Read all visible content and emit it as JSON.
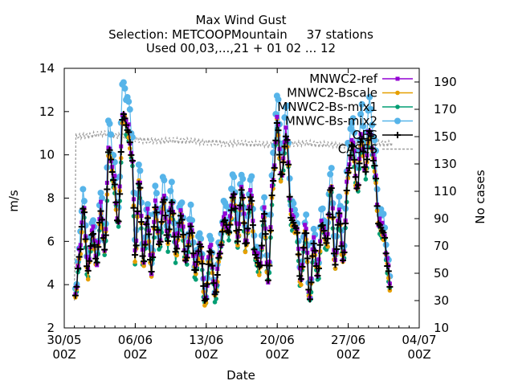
{
  "chart_data": {
    "type": "line",
    "title_lines": [
      "Max Wind Gust",
      "Selection: METCOOPMountain     37 stations",
      "Used 00,03,...,21 + 01 02 ... 12"
    ],
    "xlabel": "Date",
    "ylabel": "m/s",
    "y2label": "No cases",
    "x_ticks": [
      {
        "day": 0,
        "line1": "30/05",
        "line2": "00Z"
      },
      {
        "day": 7,
        "line1": "06/06",
        "line2": "00Z"
      },
      {
        "day": 14,
        "line1": "13/06",
        "line2": "00Z"
      },
      {
        "day": 21,
        "line1": "20/06",
        "line2": "00Z"
      },
      {
        "day": 28,
        "line1": "27/06",
        "line2": "00Z"
      },
      {
        "day": 35,
        "line1": "04/07",
        "line2": "00Z"
      }
    ],
    "xlim_days": [
      0,
      35
    ],
    "ylim": [
      2,
      14
    ],
    "y_ticks": [
      2,
      4,
      6,
      8,
      10,
      12,
      14
    ],
    "y2lim": [
      10,
      200
    ],
    "y2_ticks": [
      10,
      30,
      50,
      70,
      90,
      110,
      130,
      150,
      170,
      190
    ],
    "legend_position": "top-right",
    "grid": false,
    "obs_keypoints": [
      [
        1.1,
        3.7
      ],
      [
        1.5,
        5.5
      ],
      [
        1.9,
        7.8
      ],
      [
        2.3,
        4.8
      ],
      [
        2.8,
        6.6
      ],
      [
        3.2,
        5.2
      ],
      [
        3.6,
        7.6
      ],
      [
        4.0,
        5.8
      ],
      [
        4.4,
        10.5
      ],
      [
        4.9,
        9.0
      ],
      [
        5.3,
        7.0
      ],
      [
        5.8,
        12.1
      ],
      [
        6.3,
        11.3
      ],
      [
        6.7,
        10.0
      ],
      [
        7.0,
        5.5
      ],
      [
        7.4,
        9.0
      ],
      [
        7.8,
        5.2
      ],
      [
        8.2,
        7.3
      ],
      [
        8.6,
        4.8
      ],
      [
        9.0,
        7.8
      ],
      [
        9.4,
        6.0
      ],
      [
        9.8,
        8.2
      ],
      [
        10.2,
        6.2
      ],
      [
        10.6,
        8.0
      ],
      [
        11.0,
        5.7
      ],
      [
        11.5,
        7.4
      ],
      [
        12.0,
        5.3
      ],
      [
        12.5,
        6.9
      ],
      [
        12.9,
        4.8
      ],
      [
        13.4,
        6.1
      ],
      [
        13.9,
        3.4
      ],
      [
        14.4,
        5.8
      ],
      [
        14.9,
        3.7
      ],
      [
        15.3,
        5.6
      ],
      [
        15.8,
        7.2
      ],
      [
        16.2,
        6.6
      ],
      [
        16.7,
        8.4
      ],
      [
        17.1,
        6.2
      ],
      [
        17.5,
        8.6
      ],
      [
        17.9,
        6.0
      ],
      [
        18.4,
        8.3
      ],
      [
        18.8,
        5.6
      ],
      [
        19.3,
        5.0
      ],
      [
        19.7,
        7.5
      ],
      [
        20.1,
        4.4
      ],
      [
        20.6,
        9.0
      ],
      [
        21.0,
        11.7
      ],
      [
        21.4,
        9.2
      ],
      [
        21.9,
        11.1
      ],
      [
        22.4,
        7.2
      ],
      [
        22.9,
        6.8
      ],
      [
        23.3,
        4.4
      ],
      [
        23.8,
        6.7
      ],
      [
        24.2,
        3.5
      ],
      [
        24.6,
        6.1
      ],
      [
        25.0,
        4.6
      ],
      [
        25.4,
        7.0
      ],
      [
        25.9,
        6.1
      ],
      [
        26.3,
        8.8
      ],
      [
        26.7,
        5.1
      ],
      [
        27.1,
        7.5
      ],
      [
        27.5,
        5.3
      ],
      [
        28.0,
        9.4
      ],
      [
        28.4,
        10.7
      ],
      [
        28.9,
        8.6
      ],
      [
        29.3,
        11.0
      ],
      [
        29.7,
        9.4
      ],
      [
        30.1,
        11.3
      ],
      [
        30.6,
        9.7
      ],
      [
        31.0,
        7.0
      ],
      [
        31.5,
        6.6
      ],
      [
        31.9,
        5.0
      ],
      [
        32.2,
        3.8
      ]
    ],
    "cases_keypoints": [
      [
        1.0,
        30
      ],
      [
        1.15,
        150
      ],
      [
        4.0,
        152
      ],
      [
        6.0,
        150
      ],
      [
        8.0,
        147
      ],
      [
        10.0,
        147
      ],
      [
        12.0,
        147
      ],
      [
        14.0,
        146
      ],
      [
        16.0,
        145
      ],
      [
        18.0,
        145
      ],
      [
        20.0,
        144
      ],
      [
        22.0,
        145
      ],
      [
        24.0,
        145
      ],
      [
        26.0,
        144
      ],
      [
        28.0,
        144
      ],
      [
        30.0,
        145
      ],
      [
        32.0,
        145
      ],
      [
        32.3,
        145
      ]
    ],
    "series": [
      {
        "name": "MNWC2-ref",
        "color": "#9400d3",
        "marker": "square-dot",
        "offset": 0.15
      },
      {
        "name": "MNWC2-Bscale",
        "color": "#e69f00",
        "marker": "dot",
        "offset": -0.1
      },
      {
        "name": "MNWC2-Bs-mix1",
        "color": "#009e73",
        "marker": "dot",
        "offset": -0.25
      },
      {
        "name": "MNWC-Bs-mix2",
        "color": "#56b4e9",
        "marker": "circle",
        "offset": 0.35
      },
      {
        "name": "OBS",
        "color": "#000000",
        "marker": "cross",
        "offset": 0.0
      },
      {
        "name": "CASES",
        "color": "#a0a0a0",
        "marker": "none",
        "dashed": true,
        "offset": 0.0
      }
    ]
  }
}
